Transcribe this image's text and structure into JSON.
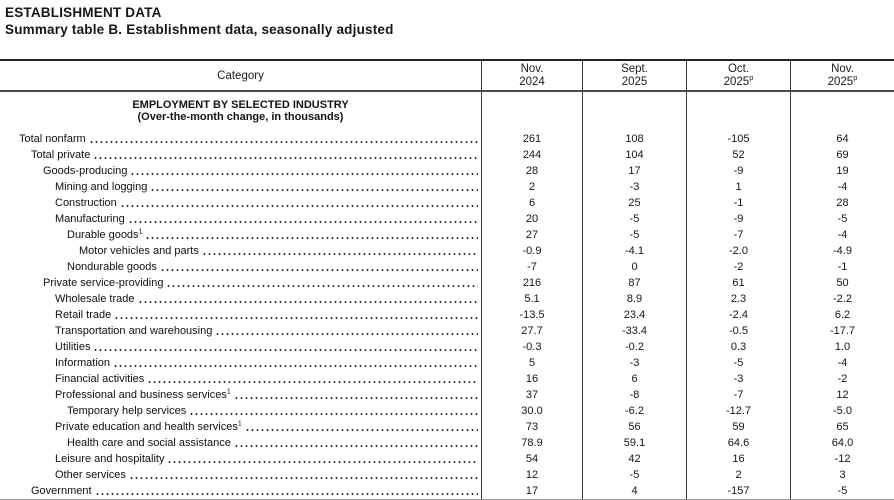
{
  "page": {
    "kicker": "ESTABLISHMENT DATA",
    "title": "Summary table B. Establishment data, seasonally adjusted"
  },
  "table": {
    "category_header": "Category",
    "columns": [
      {
        "line1": "Nov.",
        "line2": "2024",
        "sup": ""
      },
      {
        "line1": "Sept.",
        "line2": "2025",
        "sup": ""
      },
      {
        "line1": "Oct.",
        "line2": "2025",
        "sup": "p"
      },
      {
        "line1": "Nov.",
        "line2": "2025",
        "sup": "p"
      }
    ],
    "section_title": "EMPLOYMENT BY SELECTED INDUSTRY",
    "section_subtitle": "(Over-the-month change, in thousands)",
    "rows": [
      {
        "label": "Total nonfarm",
        "indent": 0,
        "sup": "",
        "values": [
          "261",
          "108",
          "-105",
          "64"
        ]
      },
      {
        "label": "Total private",
        "indent": 1,
        "sup": "",
        "values": [
          "244",
          "104",
          "52",
          "69"
        ]
      },
      {
        "label": "Goods-producing",
        "indent": 2,
        "sup": "",
        "values": [
          "28",
          "17",
          "-9",
          "19"
        ]
      },
      {
        "label": "Mining and logging",
        "indent": 3,
        "sup": "",
        "values": [
          "2",
          "-3",
          "1",
          "-4"
        ]
      },
      {
        "label": "Construction",
        "indent": 3,
        "sup": "",
        "values": [
          "6",
          "25",
          "-1",
          "28"
        ]
      },
      {
        "label": "Manufacturing",
        "indent": 3,
        "sup": "",
        "values": [
          "20",
          "-5",
          "-9",
          "-5"
        ]
      },
      {
        "label": "Durable goods",
        "indent": 4,
        "sup": "1",
        "values": [
          "27",
          "-5",
          "-7",
          "-4"
        ]
      },
      {
        "label": "Motor vehicles and parts",
        "indent": 5,
        "sup": "",
        "values": [
          "-0.9",
          "-4.1",
          "-2.0",
          "-4.9"
        ]
      },
      {
        "label": "Nondurable goods",
        "indent": 4,
        "sup": "",
        "values": [
          "-7",
          "0",
          "-2",
          "-1"
        ]
      },
      {
        "label": "Private service-providing",
        "indent": 2,
        "sup": "",
        "values": [
          "216",
          "87",
          "61",
          "50"
        ]
      },
      {
        "label": "Wholesale trade",
        "indent": 3,
        "sup": "",
        "values": [
          "5.1",
          "8.9",
          "2.3",
          "-2.2"
        ]
      },
      {
        "label": "Retail trade",
        "indent": 3,
        "sup": "",
        "values": [
          "-13.5",
          "23.4",
          "-2.4",
          "6.2"
        ]
      },
      {
        "label": "Transportation and warehousing",
        "indent": 3,
        "sup": "",
        "values": [
          "27.7",
          "-33.4",
          "-0.5",
          "-17.7"
        ]
      },
      {
        "label": "Utilities",
        "indent": 3,
        "sup": "",
        "values": [
          "-0.3",
          "-0.2",
          "0.3",
          "1.0"
        ]
      },
      {
        "label": "Information",
        "indent": 3,
        "sup": "",
        "values": [
          "5",
          "-3",
          "-5",
          "-4"
        ]
      },
      {
        "label": "Financial activities",
        "indent": 3,
        "sup": "",
        "values": [
          "16",
          "6",
          "-3",
          "-2"
        ]
      },
      {
        "label": "Professional and business services",
        "indent": 3,
        "sup": "1",
        "values": [
          "37",
          "-8",
          "-7",
          "12"
        ]
      },
      {
        "label": "Temporary help services",
        "indent": 4,
        "sup": "",
        "values": [
          "30.0",
          "-6.2",
          "-12.7",
          "-5.0"
        ]
      },
      {
        "label": "Private education and health services",
        "indent": 3,
        "sup": "1",
        "values": [
          "73",
          "56",
          "59",
          "65"
        ]
      },
      {
        "label": "Health care and social assistance",
        "indent": 4,
        "sup": "",
        "values": [
          "78.9",
          "59.1",
          "64.6",
          "64.0"
        ]
      },
      {
        "label": "Leisure and hospitality",
        "indent": 3,
        "sup": "",
        "values": [
          "54",
          "42",
          "16",
          "-12"
        ]
      },
      {
        "label": "Other services",
        "indent": 3,
        "sup": "",
        "values": [
          "12",
          "-5",
          "2",
          "3"
        ]
      },
      {
        "label": "Government",
        "indent": 1,
        "sup": "",
        "values": [
          "17",
          "4",
          "-157",
          "-5"
        ]
      }
    ]
  }
}
